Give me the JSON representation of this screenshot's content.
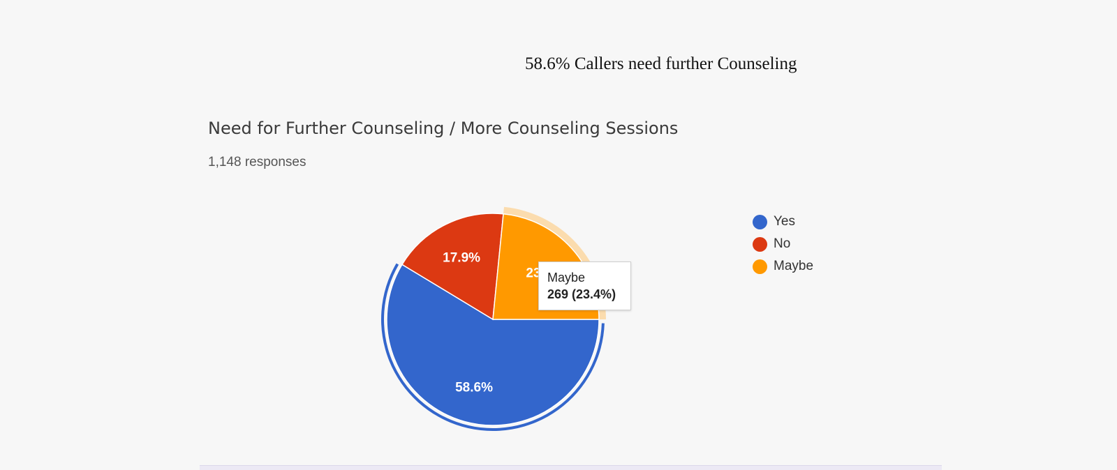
{
  "caption": "58.6% Callers need further Counseling",
  "chart_data": {
    "type": "pie",
    "title": "Need for Further Counseling / More Counseling Sessions",
    "subtitle": "1,148 responses",
    "slices": [
      {
        "name": "Yes",
        "percent": 58.6,
        "label": "58.6%",
        "color": "#3366cc"
      },
      {
        "name": "No",
        "percent": 17.9,
        "label": "17.9%",
        "color": "#dc3912"
      },
      {
        "name": "Maybe",
        "percent": 23.4,
        "label": "23.4%",
        "color": "#ff9900",
        "count": 269
      }
    ],
    "legend_position": "right"
  },
  "tooltip": {
    "label": "Maybe",
    "value": "269 (23.4%)"
  }
}
